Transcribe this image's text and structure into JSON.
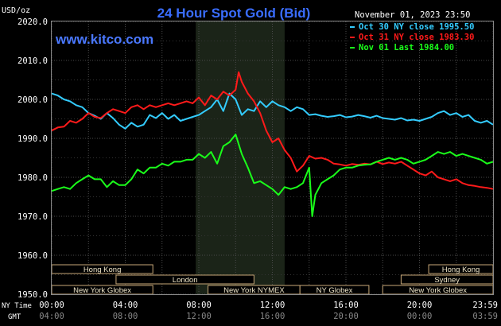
{
  "chart_data": {
    "type": "line",
    "title": "24 Hour Spot Gold (Bid)",
    "timestamp": "November 01, 2023 23:50",
    "watermark": "www.kitco.com",
    "ylabel": "USD/oz",
    "ylim": [
      1950,
      2020
    ],
    "xlim": [
      0,
      1440
    ],
    "yticks": [
      "2020.0",
      "2010.0",
      "2000.0",
      "1990.0",
      "1980.0",
      "1970.0",
      "1960.0",
      "1950.0"
    ],
    "grid": true,
    "legend_position": "top-right",
    "x_row_labels": {
      "ny": "NY Time",
      "gmt": "GMT"
    },
    "ny_ticks": [
      "00:00",
      "04:00",
      "08:00",
      "12:00",
      "16:00",
      "20:00",
      "23:59"
    ],
    "gmt_ticks": [
      "04:00",
      "08:00",
      "12:00",
      "16:00",
      "20:00",
      "00:00",
      "03:59"
    ],
    "shaded_region": [
      470,
      760
    ],
    "series": [
      {
        "name": "Oct 30 NY close 1995.50",
        "color": "#33ccff",
        "x": [
          0,
          20,
          40,
          60,
          80,
          100,
          120,
          140,
          160,
          180,
          200,
          220,
          240,
          260,
          280,
          300,
          320,
          340,
          360,
          380,
          400,
          420,
          440,
          460,
          480,
          500,
          520,
          540,
          560,
          580,
          600,
          620,
          640,
          660,
          680,
          700,
          720,
          740,
          760,
          780,
          800,
          820,
          840,
          860,
          880,
          900,
          920,
          940,
          960,
          980,
          1000,
          1020,
          1040,
          1060,
          1080,
          1100,
          1120,
          1140,
          1160,
          1180,
          1200,
          1220,
          1240,
          1260,
          1280,
          1300,
          1320,
          1340,
          1360,
          1380,
          1400,
          1420,
          1440
        ],
        "y": [
          2001.5,
          2001,
          2000,
          1999.5,
          1998.5,
          1998,
          1996.5,
          1995.8,
          1995,
          1996.5,
          1995.2,
          1993.5,
          1992.5,
          1994,
          1993,
          1993.5,
          1996,
          1995.2,
          1996.5,
          1995,
          1996,
          1994.5,
          1995,
          1995.5,
          1996,
          1997,
          1998,
          2000,
          1997,
          2001.5,
          2000,
          1996,
          1997.5,
          1997,
          1999.5,
          1998,
          1999.5,
          1998.5,
          1998,
          1997,
          1998,
          1997.5,
          1996,
          1996.2,
          1995.8,
          1995.5,
          1995.7,
          1996,
          1995.4,
          1995.6,
          1996,
          1995.7,
          1995.3,
          1995.8,
          1995.2,
          1995,
          1994.8,
          1995.2,
          1994.6,
          1994.8,
          1994.5,
          1995,
          1995.5,
          1996.5,
          1997,
          1996,
          1996.5,
          1995.5,
          1996,
          1994.5,
          1994,
          1994.5,
          1993.5
        ]
      },
      {
        "name": "Oct 31 NY close 1983.30",
        "color": "#ff1a1a",
        "x": [
          0,
          20,
          40,
          60,
          80,
          100,
          120,
          140,
          160,
          180,
          200,
          220,
          240,
          260,
          280,
          300,
          320,
          340,
          360,
          380,
          400,
          420,
          440,
          460,
          480,
          500,
          520,
          540,
          560,
          580,
          600,
          610,
          620,
          640,
          660,
          680,
          700,
          720,
          740,
          760,
          780,
          800,
          820,
          840,
          860,
          880,
          900,
          920,
          940,
          960,
          980,
          1000,
          1020,
          1040,
          1060,
          1080,
          1100,
          1120,
          1140,
          1160,
          1180,
          1200,
          1220,
          1240,
          1260,
          1280,
          1300,
          1320,
          1340,
          1360,
          1380,
          1400,
          1420,
          1440
        ],
        "y": [
          1992,
          1992.8,
          1993,
          1994.5,
          1994,
          1995,
          1996.5,
          1995.5,
          1995.2,
          1996.5,
          1997.5,
          1997,
          1996.5,
          1998,
          1998.5,
          1997.5,
          1998.5,
          1998,
          1998.5,
          1999,
          1998.5,
          1999,
          1999.5,
          1999,
          2000.5,
          1998.5,
          2001,
          2000,
          2002,
          2001,
          2002.5,
          2007,
          2004.5,
          2001.5,
          1999.5,
          1996.5,
          1992,
          1989,
          1990,
          1987,
          1985,
          1981.5,
          1983,
          1985.5,
          1984.8,
          1985,
          1984.5,
          1983.5,
          1983.3,
          1983,
          1983.4,
          1983.2,
          1983.5,
          1983.3,
          1984,
          1983.4,
          1983.8,
          1983.5,
          1984,
          1983,
          1982,
          1981,
          1980.5,
          1981.5,
          1980,
          1979.5,
          1979,
          1979.5,
          1978.5,
          1978,
          1977.8,
          1977.5,
          1977.3,
          1977
        ]
      },
      {
        "name": "Nov 01 Last 1984.00",
        "color": "#1aff1a",
        "x": [
          0,
          20,
          40,
          60,
          80,
          100,
          120,
          140,
          160,
          180,
          200,
          220,
          240,
          260,
          280,
          300,
          320,
          340,
          360,
          380,
          400,
          420,
          440,
          460,
          480,
          500,
          520,
          540,
          560,
          580,
          600,
          620,
          640,
          660,
          680,
          700,
          720,
          740,
          760,
          780,
          800,
          820,
          840,
          850,
          860,
          880,
          900,
          920,
          940,
          960,
          980,
          1000,
          1020,
          1040,
          1060,
          1080,
          1100,
          1120,
          1140,
          1160,
          1180,
          1200,
          1220,
          1240,
          1260,
          1280,
          1300,
          1320,
          1340,
          1360,
          1380,
          1400,
          1420,
          1440
        ],
        "y": [
          1976.5,
          1977,
          1977.5,
          1977,
          1978.5,
          1979.5,
          1980.5,
          1979.5,
          1979.5,
          1977.5,
          1979,
          1978,
          1978,
          1979.5,
          1982,
          1981,
          1982.5,
          1982.5,
          1983.5,
          1983,
          1984,
          1984,
          1984.5,
          1984.5,
          1986,
          1985,
          1986.5,
          1983.5,
          1988,
          1989,
          1991,
          1986,
          1982.5,
          1978.5,
          1979,
          1978,
          1977,
          1975.5,
          1977.5,
          1977,
          1977.5,
          1978.5,
          1982.5,
          1970,
          1975.5,
          1978.5,
          1979.5,
          1980.5,
          1982,
          1982.5,
          1982.5,
          1983,
          1983.2,
          1983.3,
          1984,
          1984.5,
          1985,
          1984.5,
          1985,
          1984.5,
          1983.5,
          1984,
          1984.5,
          1985.5,
          1986.5,
          1986,
          1986.5,
          1985.5,
          1986,
          1985.5,
          1985,
          1984.5,
          1983.5,
          1984
        ]
      }
    ],
    "sessions": [
      {
        "label": "Hong Kong",
        "start": 0,
        "end": 330,
        "row": 0
      },
      {
        "label": "London",
        "start": 210,
        "end": 660,
        "row": 1
      },
      {
        "label": "New York Globex",
        "start": 0,
        "end": 330,
        "row": 2
      },
      {
        "label": "New York NYMEX",
        "start": 510,
        "end": 810,
        "row": 2
      },
      {
        "label": "NY Globex",
        "start": 810,
        "end": 1035,
        "row": 2
      },
      {
        "label": "Hong Kong",
        "start": 1230,
        "end": 1440,
        "row": 0
      },
      {
        "label": "Sydney",
        "start": 1140,
        "end": 1440,
        "row": 1
      },
      {
        "label": "New York Globex",
        "start": 1080,
        "end": 1440,
        "row": 2
      }
    ]
  }
}
